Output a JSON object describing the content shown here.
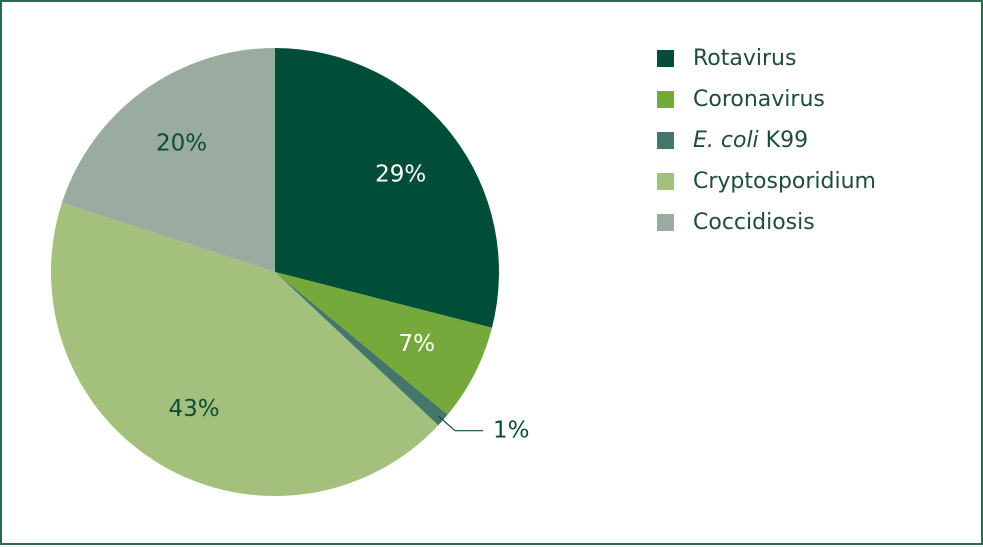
{
  "chart_data": {
    "type": "pie",
    "title": "",
    "legend_position": "right",
    "slices": [
      {
        "name": "Rotavirus",
        "name_italic": "",
        "name_rest": "Rotavirus",
        "value": 29,
        "label": "29%",
        "color": "#004d38",
        "label_color": "#ffffff"
      },
      {
        "name": "Coronavirus",
        "name_italic": "",
        "name_rest": "Coronavirus",
        "value": 7,
        "label": "7%",
        "color": "#76a93c",
        "label_color": "#ffffff"
      },
      {
        "name": "E. coli K99",
        "name_italic": "E. coli",
        "name_rest": " K99",
        "value": 1,
        "label": "1%",
        "color": "#45766a",
        "label_color": "#0d4d36"
      },
      {
        "name": "Cryptosporidium",
        "name_italic": "",
        "name_rest": "Cryptosporidium",
        "value": 43,
        "label": "43%",
        "color": "#a3c07c",
        "label_color": "#0d4d36"
      },
      {
        "name": "Coccidiosis",
        "name_italic": "",
        "name_rest": "Coccidiosis",
        "value": 20,
        "label": "20%",
        "color": "#9aaba0",
        "label_color": "#0d4d36"
      }
    ]
  },
  "colors": {
    "border": "#2e6b4c",
    "leader_line": "#0d4d36",
    "legend_text": "#1f4d3a"
  }
}
